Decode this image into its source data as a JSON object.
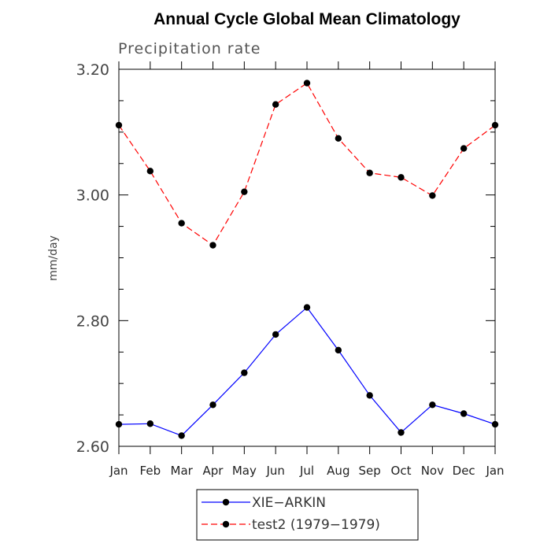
{
  "chart_data": {
    "type": "line",
    "title": "Annual Cycle Global Mean Climatology",
    "subtitle": "Precipitation rate",
    "ylabel": "mm/day",
    "xlabel": "",
    "categories": [
      "Jan",
      "Feb",
      "Mar",
      "Apr",
      "May",
      "Jun",
      "Jul",
      "Aug",
      "Sep",
      "Oct",
      "Nov",
      "Dec",
      "Jan"
    ],
    "ylim": [
      2.6,
      3.2
    ],
    "yticks": [
      "2.60",
      "2.80",
      "3.00",
      "3.20"
    ],
    "grid": false,
    "legend_position": "bottom",
    "series": [
      {
        "name": "XIE−ARKIN",
        "color": "#0000ff",
        "dash": "solid",
        "marker": "circle",
        "values": [
          2.635,
          2.636,
          2.617,
          2.666,
          2.717,
          2.778,
          2.821,
          2.753,
          2.681,
          2.622,
          2.666,
          2.652,
          2.635
        ]
      },
      {
        "name": "test2 (1979−1979)",
        "color": "#ff0000",
        "dash": "dashed",
        "marker": "circle",
        "values": [
          3.111,
          3.038,
          2.955,
          2.92,
          3.005,
          3.144,
          3.178,
          3.09,
          3.035,
          3.028,
          2.999,
          3.074,
          3.111
        ]
      }
    ]
  }
}
